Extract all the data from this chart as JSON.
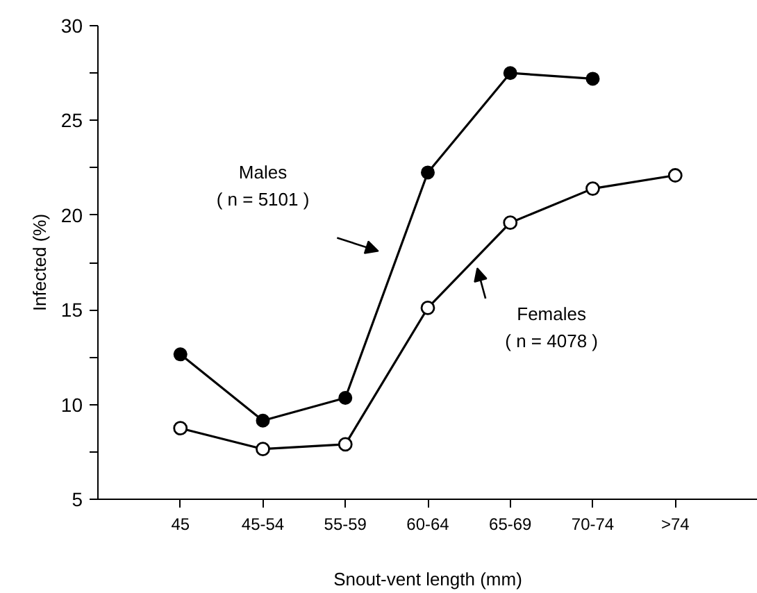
{
  "chart_data": {
    "type": "line",
    "xlabel": "Snout-vent length (mm)",
    "ylabel": "Infected (%)",
    "categories": [
      "45",
      "45-54",
      "55-59",
      "60-64",
      "65-69",
      "70-74",
      ">74"
    ],
    "series": [
      {
        "color": "#000000",
        "marker": "circle",
        "values": [
          12.65,
          9.15,
          10.35,
          22.25,
          27.5,
          27.2,
          null
        ]
      },
      {
        "color": "#000000",
        "marker": "open_circle",
        "values": [
          8.75,
          7.65,
          7.9,
          15.1,
          19.6,
          21.4,
          22.1
        ]
      }
    ],
    "annotations": [
      "Males\n( n = 5101 )",
      "Females\n( n = 4078 )"
    ],
    "ylim": [
      5,
      30
    ],
    "yticks": [
      5,
      {
        "value": 7.5,
        "label": null
      },
      10,
      {
        "value": 12.5,
        "label": null
      },
      15,
      {
        "value": 17.5,
        "label": null
      },
      20,
      {
        "value": 22.5,
        "label": null
      },
      25,
      {
        "value": 27.5,
        "label": null
      },
      30
    ],
    "grid": false,
    "line_style": "solid"
  }
}
